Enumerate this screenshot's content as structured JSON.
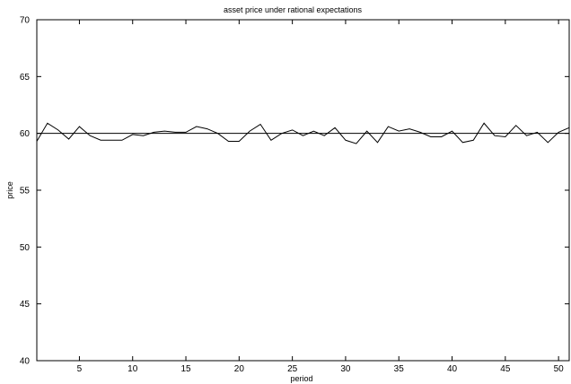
{
  "chart_data": {
    "type": "line",
    "title": "asset price under rational expectations",
    "xlabel": "period",
    "ylabel": "price",
    "xlim": [
      1,
      51
    ],
    "ylim": [
      40,
      70
    ],
    "xticks": [
      5,
      10,
      15,
      20,
      25,
      30,
      35,
      40,
      45,
      50
    ],
    "yticks": [
      40,
      45,
      50,
      55,
      60,
      65,
      70
    ],
    "grid": false,
    "reference_line": 60,
    "series": [
      {
        "x": [
          1,
          2,
          3,
          4,
          5,
          6,
          7,
          8,
          9,
          10,
          11,
          12,
          13,
          14,
          15,
          16,
          17,
          18,
          19,
          20,
          21,
          22,
          23,
          24,
          25,
          26,
          27,
          28,
          29,
          30,
          31,
          32,
          33,
          34,
          35,
          36,
          37,
          38,
          39,
          40,
          41,
          42,
          43,
          44,
          45,
          46,
          47,
          48,
          49,
          50,
          51
        ],
        "values": [
          59.3,
          60.9,
          60.3,
          59.5,
          60.6,
          59.8,
          59.4,
          59.4,
          59.4,
          59.9,
          59.8,
          60.1,
          60.2,
          60.1,
          60.1,
          60.6,
          60.4,
          60.0,
          59.3,
          59.3,
          60.2,
          60.8,
          59.4,
          60.0,
          60.3,
          59.8,
          60.2,
          59.8,
          60.5,
          59.4,
          59.1,
          60.2,
          59.2,
          60.6,
          60.2,
          60.4,
          60.1,
          59.7,
          59.7,
          60.2,
          59.2,
          59.4,
          60.9,
          59.8,
          59.7,
          60.7,
          59.8,
          60.1,
          59.2,
          60.1,
          60.5
        ]
      }
    ]
  }
}
